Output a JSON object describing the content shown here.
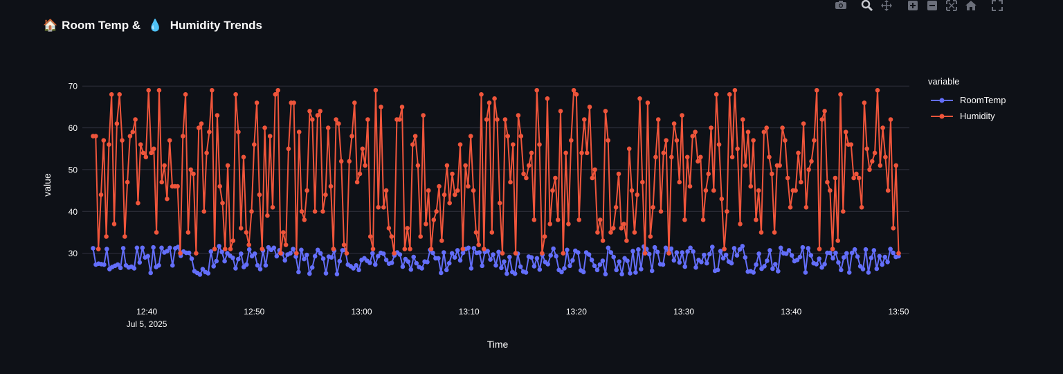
{
  "title": {
    "emoji1": "🏠",
    "text1": "Room Temp & ",
    "emoji2": "💧",
    "text2": " Humidity Trends"
  },
  "modebar": [
    "camera-icon",
    "zoom-icon",
    "pan-icon",
    "zoom-in-icon",
    "zoom-out-icon",
    "autoscale-icon",
    "home-icon",
    "fullscreen-icon"
  ],
  "legend": {
    "title": "variable"
  },
  "colors": {
    "background": "#0e1117",
    "grid": "#31333f",
    "text": "#fafafa",
    "RoomTemp": "#636efa",
    "Humidity": "#ef553b"
  },
  "chart_data": {
    "type": "line",
    "title": "🏠 Room Temp & 💧 Humidity Trends",
    "xlabel": "Time",
    "ylabel": "value",
    "x_range": [
      "2025-07-05 12:34",
      "2025-07-05 13:51"
    ],
    "x_start": "2025-07-05 12:35:00",
    "x_end": "2025-07-05 13:50:00",
    "points_per_series": 300,
    "xticks": [
      {
        "t": "2025-07-05 12:40",
        "label": "12:40",
        "sublabel": "Jul 5, 2025"
      },
      {
        "t": "2025-07-05 12:50",
        "label": "12:50"
      },
      {
        "t": "2025-07-05 13:00",
        "label": "13:00"
      },
      {
        "t": "2025-07-05 13:10",
        "label": "13:10"
      },
      {
        "t": "2025-07-05 13:20",
        "label": "13:20"
      },
      {
        "t": "2025-07-05 13:30",
        "label": "13:30"
      },
      {
        "t": "2025-07-05 13:40",
        "label": "13:40"
      },
      {
        "t": "2025-07-05 13:50",
        "label": "13:50"
      }
    ],
    "ylim": [
      20.5,
      76
    ],
    "yticks": [
      30,
      40,
      50,
      60,
      70
    ],
    "grid": true,
    "legend_position": "top-right",
    "series": [
      {
        "name": "RoomTemp",
        "color": "#636efa",
        "values": [
          31.2,
          27.3,
          27.5,
          27.4,
          27.3,
          31.0,
          26.2,
          26.7,
          27.0,
          27.3,
          26.5,
          31.2,
          27.1,
          26.6,
          26.8,
          26.4,
          31.3,
          27.8,
          31.3,
          29.0,
          29.3,
          25.3,
          31.4,
          26.7,
          27.1,
          31.3,
          30.2,
          30.5,
          31.3,
          27.1,
          31.2,
          31.5,
          29.4,
          30.4,
          30.1,
          30.1,
          28.7,
          25.7,
          25.3,
          24.9,
          26.2,
          25.5,
          25.2,
          30.4,
          26.9,
          28.1,
          31.7,
          30.3,
          28.1,
          30.0,
          29.4,
          28.9,
          26.4,
          28.6,
          29.9,
          26.7,
          27.3,
          30.9,
          29.3,
          29.9,
          27.1,
          26.2,
          30.6,
          27.1,
          31.4,
          30.8,
          31.3,
          29.3,
          30.7,
          29.9,
          28.3,
          29.7,
          30.0,
          31.0,
          29.2,
          25.5,
          30.8,
          28.6,
          29.6,
          25.1,
          26.6,
          29.3,
          30.8,
          30.0,
          28.7,
          25.2,
          29.2,
          29.0,
          30.6,
          25.0,
          28.1,
          30.7,
          30.8,
          27.3,
          26.9,
          26.4,
          27.1,
          26.0,
          28.4,
          28.8,
          28.2,
          27.7,
          30.0,
          27.3,
          29.3,
          30.1,
          29.9,
          28.4,
          27.5,
          27.7,
          29.5,
          30.2,
          29.7,
          26.8,
          28.6,
          28.0,
          26.1,
          29.1,
          27.6,
          26.7,
          26.4,
          28.0,
          27.9,
          30.8,
          30.1,
          28.8,
          28.8,
          25.3,
          30.2,
          26.0,
          27.6,
          30.0,
          29.0,
          30.7,
          28.3,
          30.1,
          31.0,
          31.3,
          26.4,
          31.2,
          30.1,
          30.2,
          27.0,
          30.3,
          30.5,
          28.5,
          29.7,
          27.1,
          30.3,
          26.5,
          28.0,
          25.1,
          29.1,
          25.5,
          25.1,
          29.9,
          26.8,
          25.6,
          25.4,
          29.2,
          29.0,
          26.9,
          28.8,
          26.1,
          29.6,
          27.9,
          27.4,
          29.5,
          31.1,
          29.3,
          26.0,
          25.5,
          26.4,
          30.8,
          27.0,
          28.3,
          30.6,
          30.2,
          25.9,
          25.5,
          30.2,
          29.7,
          28.4,
          27.0,
          26.0,
          27.3,
          28.2,
          25.0,
          31.3,
          30.2,
          29.1,
          26.0,
          28.0,
          25.0,
          28.8,
          28.2,
          25.2,
          30.5,
          25.4,
          30.9,
          26.2,
          31.6,
          31.0,
          29.8,
          25.8,
          31.4,
          30.3,
          27.4,
          27.3,
          31.3,
          30.5,
          31.1,
          28.3,
          30.2,
          27.8,
          30.2,
          26.8,
          30.4,
          31.3,
          30.4,
          26.6,
          28.4,
          27.9,
          29.6,
          27.6,
          29.8,
          31.5,
          25.8,
          26.0,
          30.5,
          28.8,
          29.6,
          28.0,
          27.6,
          31.2,
          29.5,
          30.9,
          31.7,
          29.0,
          25.6,
          25.7,
          25.4,
          27.3,
          29.9,
          26.3,
          26.9,
          28.2,
          30.7,
          26.3,
          27.4,
          25.7,
          31.3,
          30.0,
          29.9,
          30.7,
          29.5,
          28.1,
          28.4,
          29.1,
          31.4,
          25.4,
          31.2,
          29.5,
          27.6,
          27.4,
          28.7,
          26.6,
          27.4,
          30.1,
          30.1,
          28.8,
          30.1,
          27.8,
          26.0,
          29.0,
          30.0,
          25.4,
          30.1,
          30.9,
          29.2,
          26.9,
          26.2,
          30.9,
          25.4,
          28.9,
          30.7,
          26.3,
          29.3,
          27.3,
          29.1,
          27.9,
          31.0,
          30.1,
          29.1,
          29.3
        ]
      },
      {
        "name": "Humidity",
        "color": "#ef553b",
        "values": [
          58,
          58,
          31,
          44,
          57,
          34,
          56,
          68,
          37,
          61,
          68,
          57,
          34,
          47,
          58,
          59,
          62,
          42,
          56,
          54,
          53,
          69,
          54,
          55,
          35,
          69,
          47,
          51,
          43,
          57,
          46,
          46,
          46,
          30,
          58,
          68,
          35,
          50,
          49,
          30,
          60,
          61,
          40,
          54,
          59,
          69,
          31,
          63,
          46,
          42,
          31,
          51,
          31,
          33,
          68,
          59,
          36,
          53,
          35,
          32,
          40,
          56,
          66,
          44,
          31,
          60,
          39,
          58,
          41,
          68,
          69,
          30,
          35,
          32,
          55,
          66,
          66,
          30,
          59,
          40,
          38,
          45,
          64,
          62,
          40,
          63,
          64,
          40,
          44,
          60,
          46,
          31,
          62,
          61,
          52,
          32,
          30,
          52,
          58,
          66,
          47,
          49,
          55,
          51,
          62,
          34,
          31,
          69,
          41,
          65,
          41,
          45,
          36,
          34,
          30,
          62,
          62,
          65,
          31,
          36,
          31,
          56,
          58,
          51,
          34,
          63,
          37,
          45,
          31,
          38,
          40,
          46,
          33,
          44,
          51,
          42,
          49,
          44,
          45,
          56,
          31,
          51,
          46,
          58,
          45,
          35,
          32,
          68,
          31,
          62,
          66,
          35,
          67,
          62,
          42,
          30,
          62,
          58,
          47,
          56,
          30,
          63,
          58,
          49,
          48,
          51,
          54,
          38,
          69,
          56,
          30,
          34,
          67,
          37,
          45,
          48,
          38,
          64,
          30,
          54,
          37,
          57,
          69,
          68,
          38,
          54,
          62,
          54,
          65,
          48,
          50,
          35,
          38,
          33,
          64,
          57,
          35,
          36,
          41,
          49,
          36,
          37,
          33,
          55,
          45,
          35,
          44,
          67,
          47,
          30,
          66,
          34,
          41,
          53,
          62,
          40,
          54,
          57,
          30,
          53,
          61,
          57,
          47,
          63,
          38,
          53,
          46,
          58,
          59,
          52,
          53,
          38,
          45,
          49,
          60,
          45,
          68,
          56,
          43,
          31,
          40,
          68,
          53,
          69,
          55,
          37,
          62,
          51,
          59,
          46,
          57,
          38,
          45,
          35,
          59,
          60,
          53,
          49,
          35,
          51,
          51,
          60,
          57,
          48,
          41,
          45,
          45,
          54,
          47,
          61,
          41,
          50,
          52,
          57,
          69,
          31,
          62,
          64,
          47,
          45,
          31,
          48,
          33,
          68,
          40,
          59,
          56,
          56,
          48,
          49,
          48,
          41,
          66,
          55,
          50,
          52,
          54,
          69,
          51,
          60,
          53,
          45,
          62,
          36,
          51,
          30
        ]
      }
    ]
  }
}
